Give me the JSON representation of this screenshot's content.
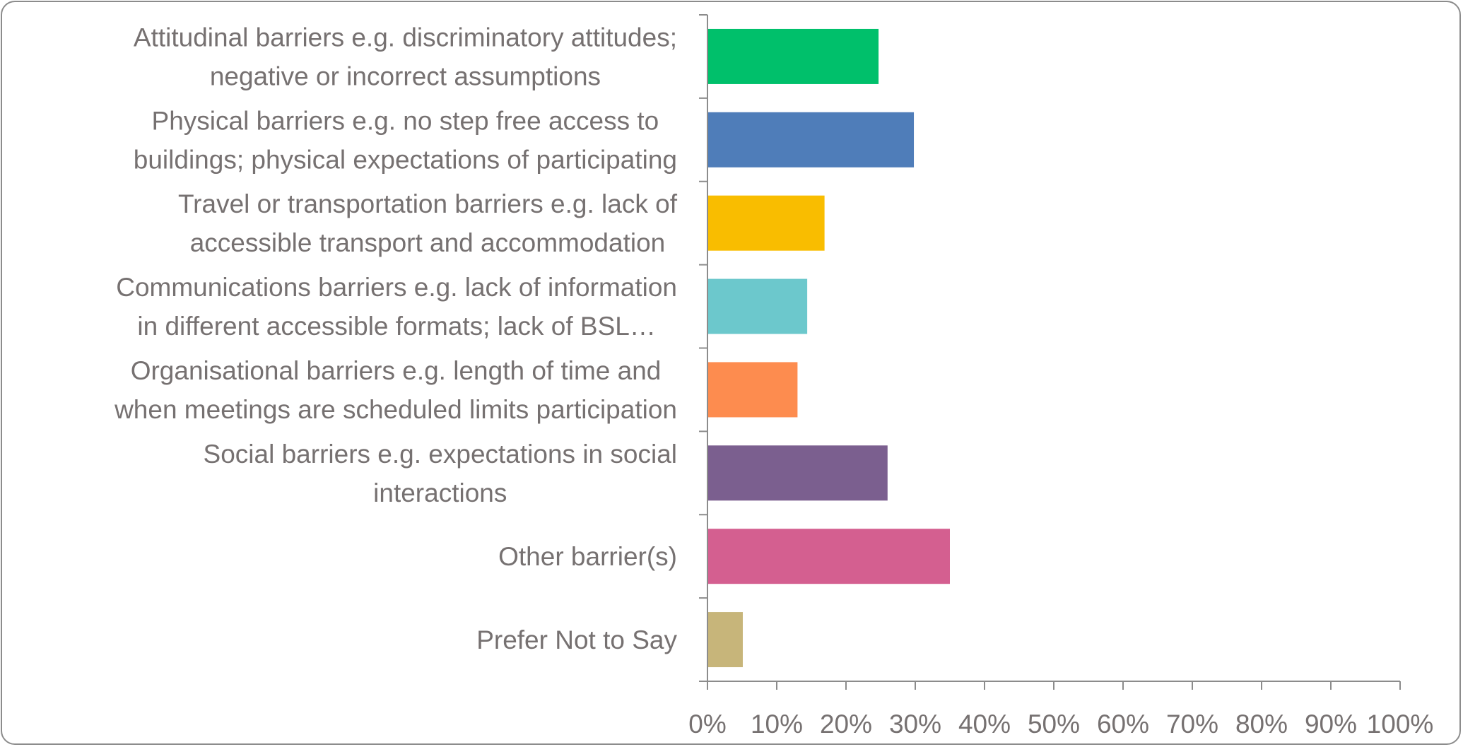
{
  "chart_data": {
    "type": "bar",
    "orientation": "horizontal",
    "categories": [
      [
        "Attitudinal barriers e.g. discriminatory attitudes;",
        "negative or incorrect assumptions"
      ],
      [
        "Physical barriers e.g. no step free access to",
        "buildings; physical expectations of participating"
      ],
      [
        "Travel or transportation barriers e.g. lack of",
        "accessible transport and accommodation"
      ],
      [
        "Communications barriers e.g. lack of information",
        "in different accessible formats; lack of BSL…"
      ],
      [
        "Organisational barriers e.g. length of time and",
        "when meetings are scheduled limits participation"
      ],
      [
        "Social barriers e.g. expectations in social",
        "interactions"
      ],
      [
        "Other barrier(s)"
      ],
      [
        "Prefer Not to Say"
      ]
    ],
    "values": [
      24.7,
      29.8,
      16.9,
      14.4,
      13.0,
      26.0,
      35.0,
      5.1
    ],
    "colors": [
      "#00c06b",
      "#4f7db9",
      "#f9bd00",
      "#6cc8cc",
      "#fd8c4f",
      "#7b5f8f",
      "#d45f90",
      "#c7b57a"
    ],
    "xlim": [
      0,
      100
    ],
    "xticks": [
      "0%",
      "10%",
      "20%",
      "30%",
      "40%",
      "50%",
      "60%",
      "70%",
      "80%",
      "90%",
      "100%"
    ],
    "title": "",
    "xlabel": "",
    "ylabel": "",
    "grid": false,
    "legend": "none"
  }
}
